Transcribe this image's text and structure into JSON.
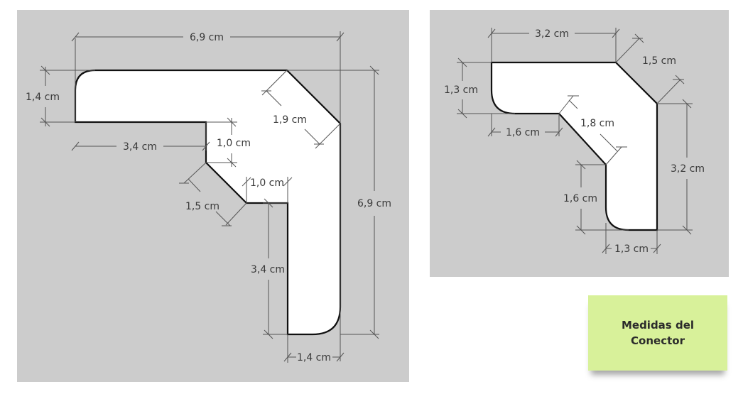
{
  "colors": {
    "panel_bg": "#cccccc",
    "shape_fill": "#ffffff",
    "shape_stroke": "#111111",
    "dim_line": "#555555",
    "note_bg": "#d8f19a"
  },
  "left_diagram": {
    "labels": {
      "top_width": "6,9 cm",
      "left_height": "1,4 cm",
      "inner_width": "3,4 cm",
      "step1": "1,0 cm",
      "diag_outer": "1,9 cm",
      "step2": "1,0 cm",
      "diag_inner": "1,5 cm",
      "right_height": "6,9 cm",
      "inner_height": "3,4 cm",
      "bottom_width": "1,4 cm"
    }
  },
  "right_diagram": {
    "labels": {
      "top_width": "3,2 cm",
      "diag_outer": "1,5 cm",
      "left_height": "1,3 cm",
      "inner_width": "1,6 cm",
      "diag_inner": "1,8 cm",
      "right_height": "3,2 cm",
      "inner_height": "1,6 cm",
      "bottom_width": "1,3 cm"
    }
  },
  "note": {
    "text": "Medidas del Conector"
  }
}
